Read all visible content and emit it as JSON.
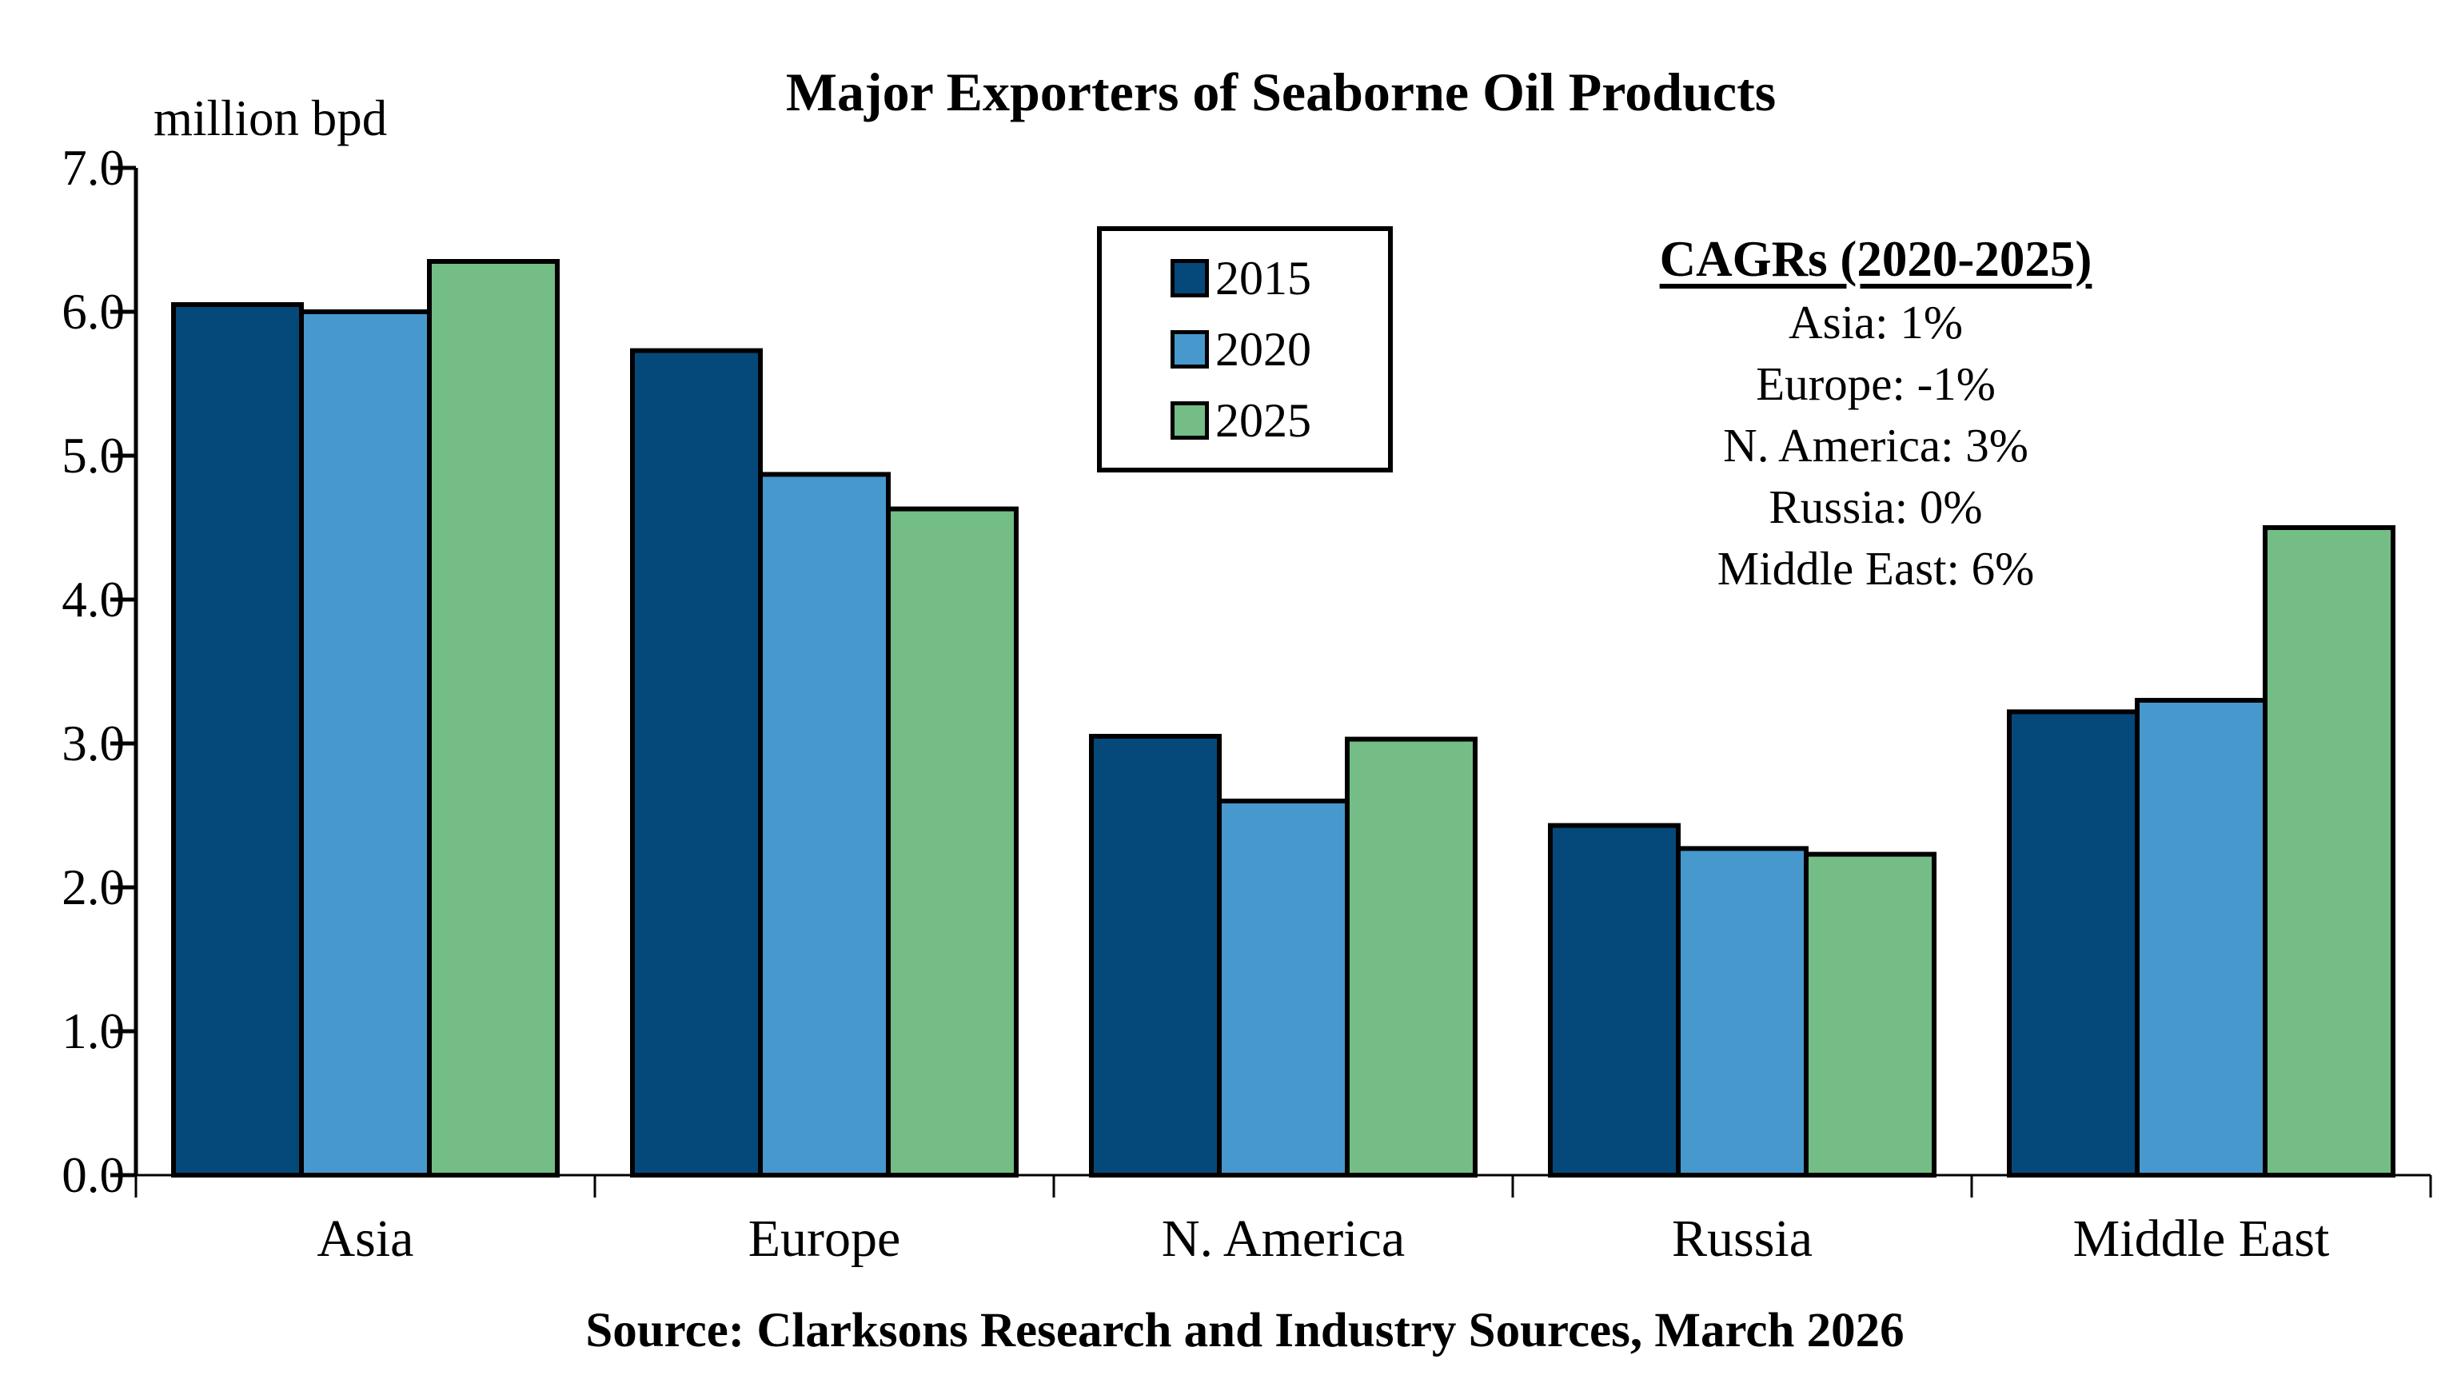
{
  "title": "Major Exporters of Seaborne Oil Products",
  "y_axis_label": "million bpd",
  "source": "Source: Clarksons Research and Industry Sources, March 2026",
  "cagr_note": {
    "title": "CAGRs (2020-2025)",
    "lines": [
      "Asia: 1%",
      "Europe: -1%",
      "N. America: 3%",
      "Russia: 0%",
      "Middle East: 6%"
    ]
  },
  "legend": {
    "entries": [
      "2015",
      "2020",
      "2025"
    ]
  },
  "colors": {
    "series_2015": "#05497A",
    "series_2020": "#4798CD",
    "series_2025": "#74BD86",
    "bar_border": "#000000",
    "axis": "#000000"
  },
  "chart_data": {
    "type": "bar",
    "categories": [
      "Asia",
      "Europe",
      "N. America",
      "Russia",
      "Middle East"
    ],
    "series": [
      {
        "name": "2015",
        "color": "#05497A",
        "values": [
          6.05,
          5.73,
          3.05,
          2.43,
          3.22
        ]
      },
      {
        "name": "2020",
        "color": "#4798CD",
        "values": [
          6.0,
          4.87,
          2.6,
          2.27,
          3.3
        ]
      },
      {
        "name": "2025",
        "color": "#74BD86",
        "values": [
          6.35,
          4.63,
          3.03,
          2.23,
          4.5
        ]
      }
    ],
    "title": "Major Exporters of Seaborne Oil Products",
    "xlabel": "",
    "ylabel": "million bpd",
    "ylim": [
      0,
      7
    ],
    "ytick_step": 1.0,
    "ytick_labels": [
      "0.0",
      "1.0",
      "2.0",
      "3.0",
      "4.0",
      "5.0",
      "6.0",
      "7.0"
    ],
    "grid": false,
    "legend_position": "upper center inside plot",
    "annotation": "CAGRs (2020-2025): Asia 1%, Europe -1%, N. America 3%, Russia 0%, Middle East 6%"
  }
}
